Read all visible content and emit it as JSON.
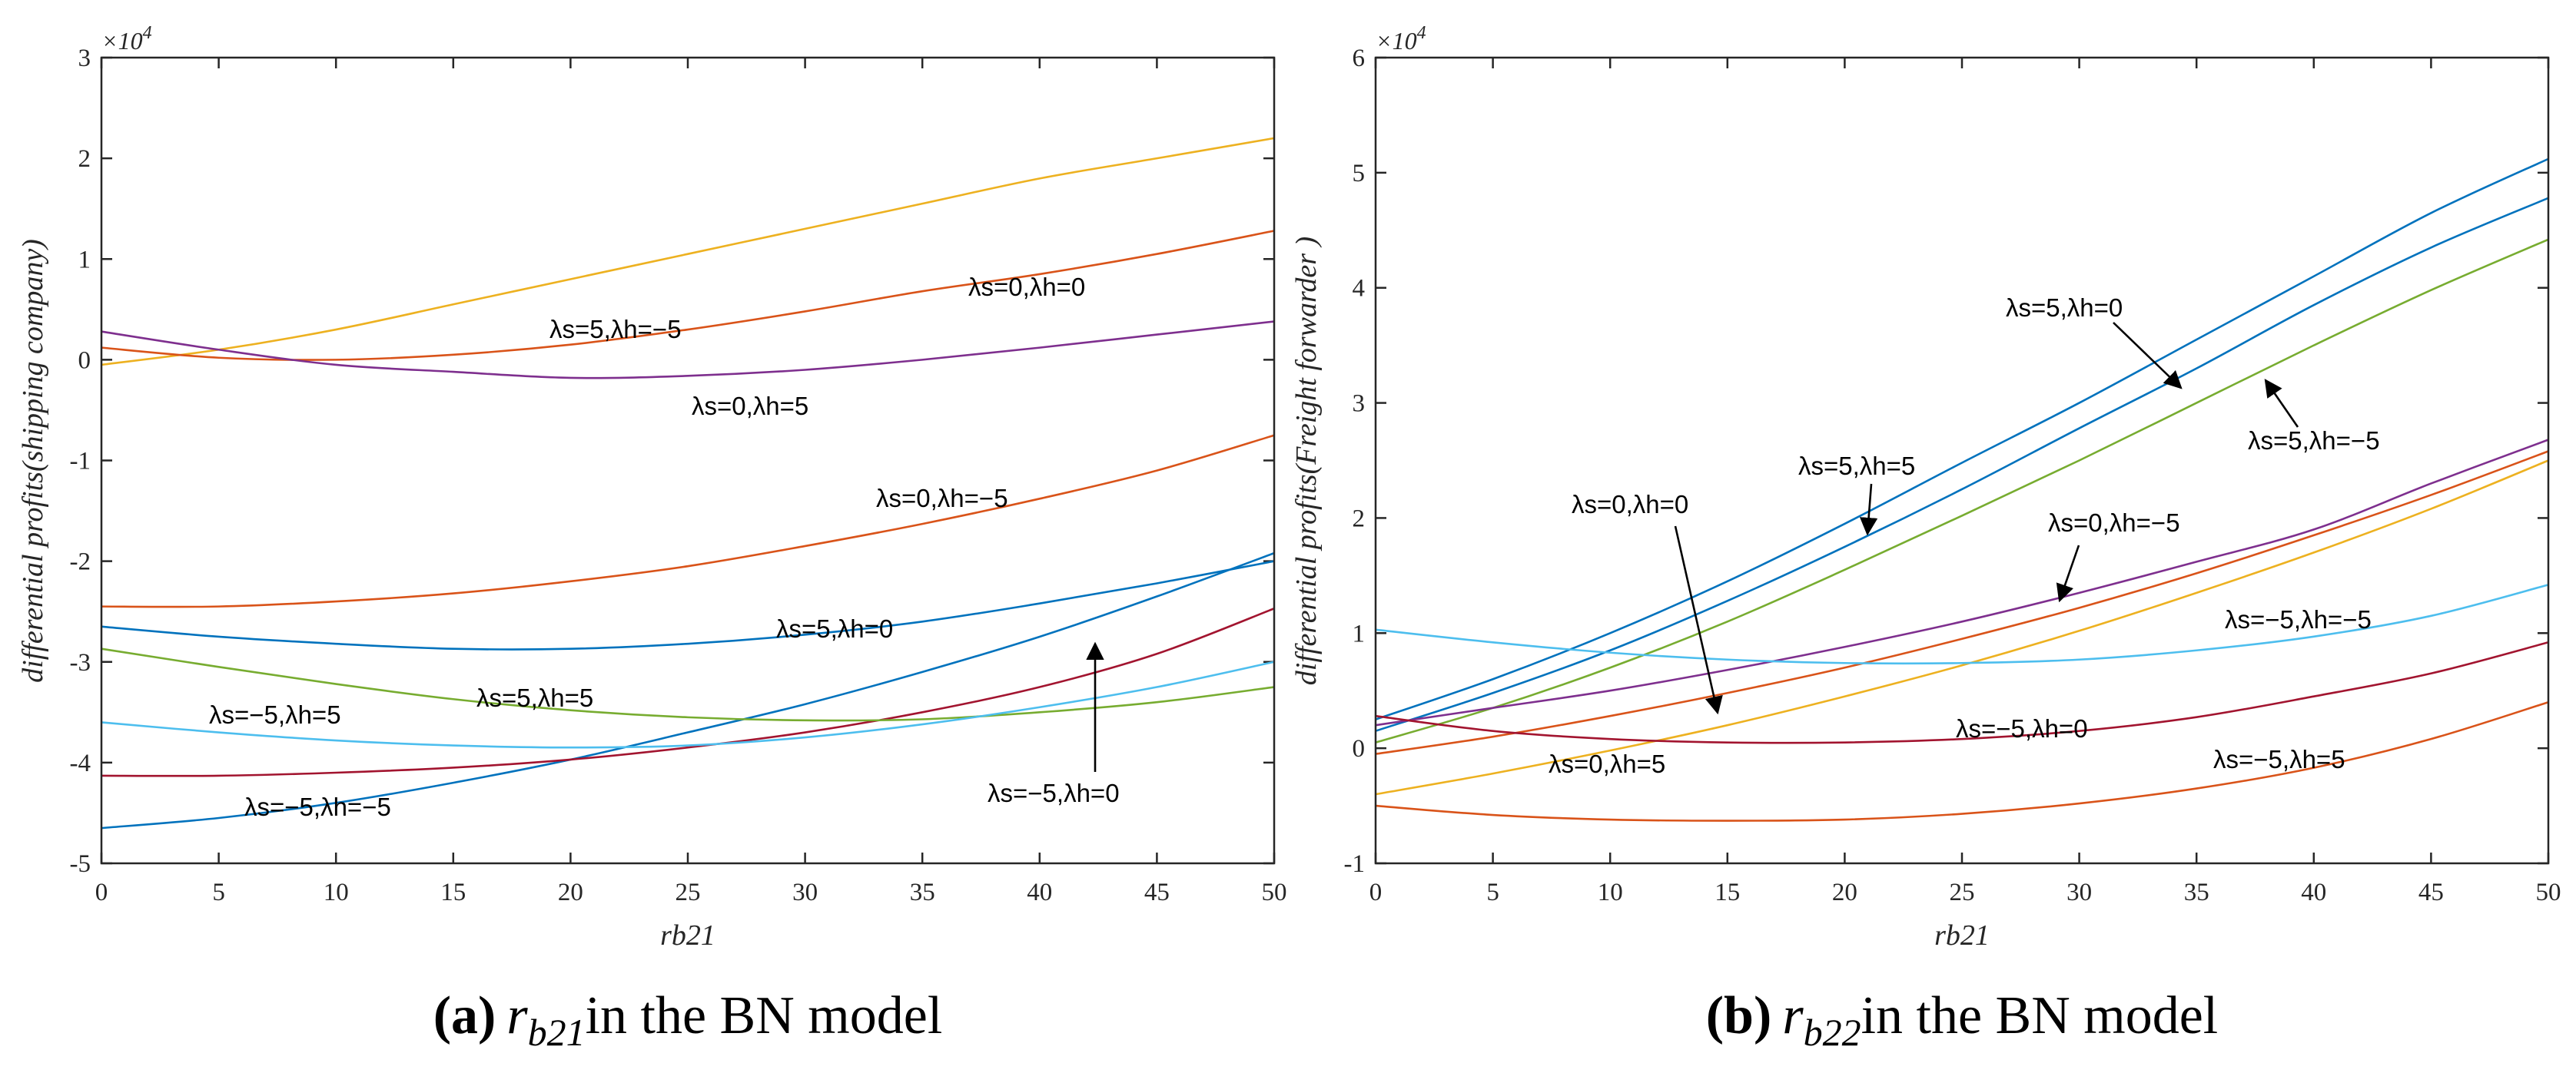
{
  "chart_data": [
    {
      "type": "line",
      "panel": "a",
      "scale_label": "×10",
      "scale_exp": "4",
      "xlabel": "rb21",
      "ylabel": "differential profits(shipping company)",
      "xlim": [
        0,
        50
      ],
      "ylim": [
        -5,
        3
      ],
      "xticks": [
        "0",
        "5",
        "10",
        "15",
        "20",
        "25",
        "30",
        "35",
        "40",
        "45",
        "50"
      ],
      "yticks": [
        "-5",
        "-4",
        "-3",
        "-2",
        "-1",
        "0",
        "1",
        "2",
        "3"
      ],
      "x": [
        0,
        5,
        10,
        15,
        20,
        25,
        30,
        35,
        40,
        45,
        50
      ],
      "series": [
        {
          "color": "#EDB120",
          "values": [
            -0.05,
            0.1,
            0.3,
            0.55,
            0.8,
            1.05,
            1.3,
            1.55,
            1.8,
            2.0,
            2.2
          ]
        },
        {
          "color": "#D95319",
          "values": [
            0.12,
            0.02,
            0.0,
            0.05,
            0.15,
            0.3,
            0.48,
            0.68,
            0.85,
            1.05,
            1.28
          ]
        },
        {
          "color": "#7E2F8E",
          "values": [
            0.28,
            0.1,
            -0.05,
            -0.12,
            -0.18,
            -0.16,
            -0.1,
            0.0,
            0.12,
            0.25,
            0.38
          ]
        },
        {
          "color": "#D95319",
          "values": [
            -2.45,
            -2.45,
            -2.4,
            -2.32,
            -2.2,
            -2.05,
            -1.85,
            -1.63,
            -1.38,
            -1.1,
            -0.75
          ]
        },
        {
          "color": "#0072BD",
          "values": [
            -2.65,
            -2.75,
            -2.82,
            -2.87,
            -2.87,
            -2.82,
            -2.73,
            -2.6,
            -2.42,
            -2.22,
            -2.0
          ]
        },
        {
          "color": "#0072BD",
          "values": [
            -4.65,
            -4.55,
            -4.4,
            -4.2,
            -3.97,
            -3.7,
            -3.42,
            -3.1,
            -2.75,
            -2.35,
            -1.92
          ]
        },
        {
          "color": "#A2142F",
          "values": [
            -4.13,
            -4.13,
            -4.1,
            -4.05,
            -3.97,
            -3.85,
            -3.7,
            -3.5,
            -3.25,
            -2.92,
            -2.47
          ]
        },
        {
          "color": "#77AC30",
          "values": [
            -2.87,
            -3.05,
            -3.22,
            -3.37,
            -3.48,
            -3.55,
            -3.58,
            -3.57,
            -3.5,
            -3.4,
            -3.25
          ]
        },
        {
          "color": "#4DBEEE",
          "values": [
            -3.6,
            -3.7,
            -3.78,
            -3.83,
            -3.85,
            -3.83,
            -3.75,
            -3.62,
            -3.45,
            -3.25,
            -3.0
          ]
        }
      ],
      "annotations": [
        "λs=0,λh=0",
        "λs=5,λh=−5",
        "λs=0,λh=5",
        "λs=0,λh=−5",
        "λs=5,λh=0",
        "λs=5,λh=5",
        "λs=−5,λh=5",
        "λs=−5,λh=−5",
        "λs=−5,λh=0"
      ],
      "caption": {
        "tag": "(a)",
        "var": "r",
        "sub": "b21",
        "rest": "in the BN model"
      }
    },
    {
      "type": "line",
      "panel": "b",
      "scale_label": "×10",
      "scale_exp": "4",
      "xlabel": "rb21",
      "ylabel": "differential profits(Freight forwarder )",
      "xlim": [
        0,
        50
      ],
      "ylim": [
        -1,
        6
      ],
      "xticks": [
        "0",
        "5",
        "10",
        "15",
        "20",
        "25",
        "30",
        "35",
        "40",
        "45",
        "50"
      ],
      "yticks": [
        "-1",
        "0",
        "1",
        "2",
        "3",
        "4",
        "5",
        "6"
      ],
      "x": [
        0,
        5,
        10,
        15,
        20,
        25,
        30,
        35,
        40,
        45,
        50
      ],
      "series": [
        {
          "color": "#0072BD",
          "values": [
            0.25,
            0.6,
            1.0,
            1.45,
            1.95,
            2.48,
            3.0,
            3.55,
            4.1,
            4.65,
            5.12
          ]
        },
        {
          "color": "#0072BD",
          "values": [
            0.15,
            0.48,
            0.85,
            1.28,
            1.75,
            2.25,
            2.78,
            3.3,
            3.85,
            4.35,
            4.78
          ]
        },
        {
          "color": "#77AC30",
          "values": [
            0.05,
            0.35,
            0.7,
            1.1,
            1.55,
            2.02,
            2.5,
            3.0,
            3.5,
            3.98,
            4.42
          ]
        },
        {
          "color": "#7E2F8E",
          "values": [
            0.2,
            0.35,
            0.5,
            0.68,
            0.88,
            1.1,
            1.35,
            1.62,
            1.9,
            2.3,
            2.68
          ]
        },
        {
          "color": "#D95319",
          "values": [
            -0.05,
            0.1,
            0.28,
            0.48,
            0.7,
            0.95,
            1.22,
            1.52,
            1.85,
            2.2,
            2.58
          ]
        },
        {
          "color": "#EDB120",
          "values": [
            -0.4,
            -0.22,
            -0.02,
            0.2,
            0.45,
            0.72,
            1.02,
            1.35,
            1.7,
            2.08,
            2.5
          ]
        },
        {
          "color": "#4DBEEE",
          "values": [
            1.03,
            0.92,
            0.83,
            0.77,
            0.74,
            0.74,
            0.77,
            0.85,
            0.97,
            1.15,
            1.42
          ]
        },
        {
          "color": "#A2142F",
          "values": [
            0.28,
            0.15,
            0.08,
            0.05,
            0.05,
            0.08,
            0.15,
            0.27,
            0.45,
            0.65,
            0.92
          ]
        },
        {
          "color": "#D95319",
          "values": [
            -0.5,
            -0.58,
            -0.62,
            -0.63,
            -0.62,
            -0.57,
            -0.48,
            -0.35,
            -0.17,
            0.08,
            0.4
          ]
        }
      ],
      "annotations": [
        "λs=5,λh=0",
        "λs=5,λh=5",
        "λs=5,λh=−5",
        "λs=0,λh=0",
        "λs=0,λh=−5",
        "λs=−5,λh=−5",
        "λs=0,λh=5",
        "λs=−5,λh=0",
        "λs=−5,λh=5"
      ],
      "caption": {
        "tag": "(b)",
        "var": "r",
        "sub": "b22",
        "rest": "in the BN model"
      }
    }
  ]
}
